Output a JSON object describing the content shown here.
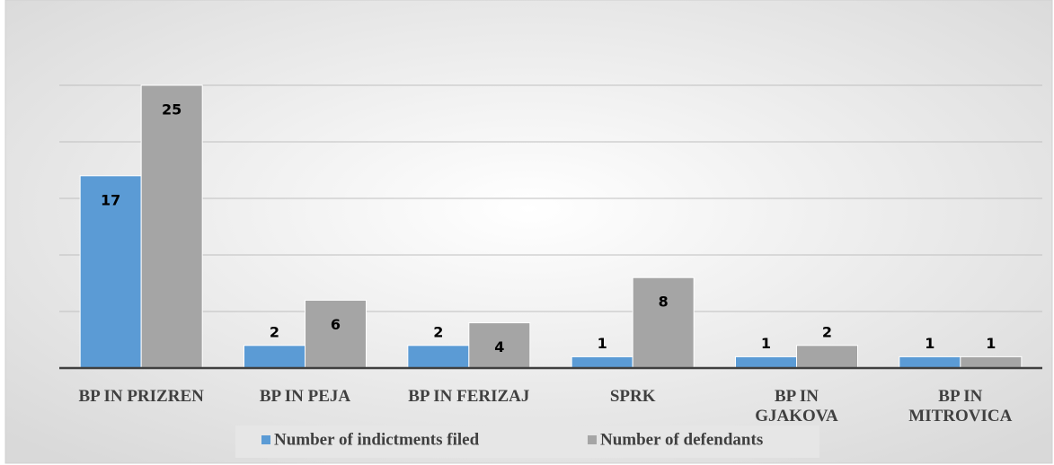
{
  "chart_data": {
    "type": "bar",
    "categories": [
      "BP IN PRIZREN",
      "BP IN PEJA",
      "BP IN FERIZAJ",
      "SPRK",
      "BP IN GJAKOVA",
      "BP IN MITROVICA"
    ],
    "series": [
      {
        "name": "Number of indictments filed",
        "color": "#5b9bd5",
        "values": [
          17,
          2,
          2,
          1,
          1,
          1
        ]
      },
      {
        "name": "Number of defendants",
        "color": "#a5a5a5",
        "values": [
          25,
          6,
          4,
          8,
          2,
          1
        ]
      }
    ],
    "ylim": [
      0,
      30
    ],
    "yticks": [
      0,
      5,
      10,
      15,
      20,
      25
    ],
    "grid": true,
    "legend": "bottom"
  }
}
